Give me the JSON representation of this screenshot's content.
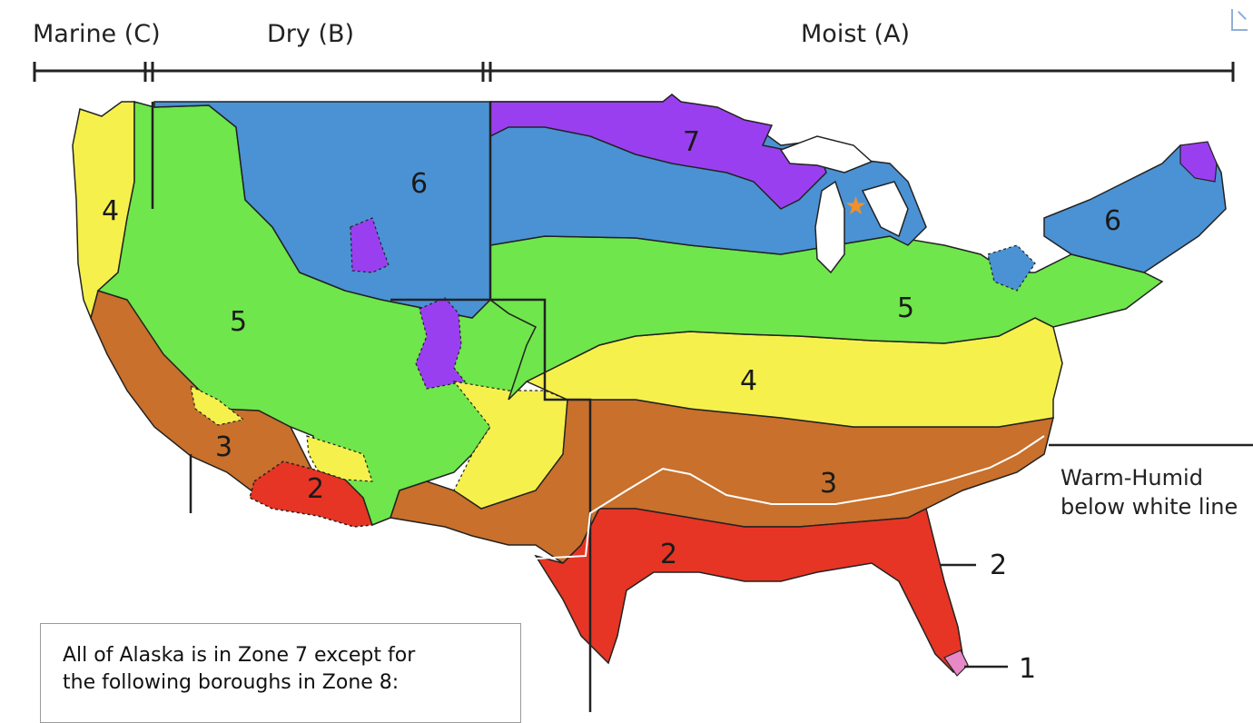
{
  "moisture_regimes": [
    {
      "label": "Marine (C)"
    },
    {
      "label": "Dry (B)"
    },
    {
      "label": "Moist (A)"
    }
  ],
  "zones": {
    "z1": "1",
    "z2": "2",
    "z3": "3",
    "z4": "4",
    "z5": "5",
    "z6": "6",
    "z7": "7"
  },
  "zone_colors": {
    "1": "#e889c7",
    "2": "#e63524",
    "3": "#c8702c",
    "4": "#f6f04d",
    "5": "#6fe64b",
    "6": "#4a92d4",
    "7": "#9a3ff0"
  },
  "warm_humid": {
    "line1": "Warm-Humid",
    "line2": "below white line"
  },
  "alaska_note": {
    "line1": "All of Alaska is in Zone 7 except for",
    "line2": "the following boroughs in Zone 8:"
  },
  "marker": {
    "icon": "star-marker-icon",
    "color": "#f0902a"
  }
}
